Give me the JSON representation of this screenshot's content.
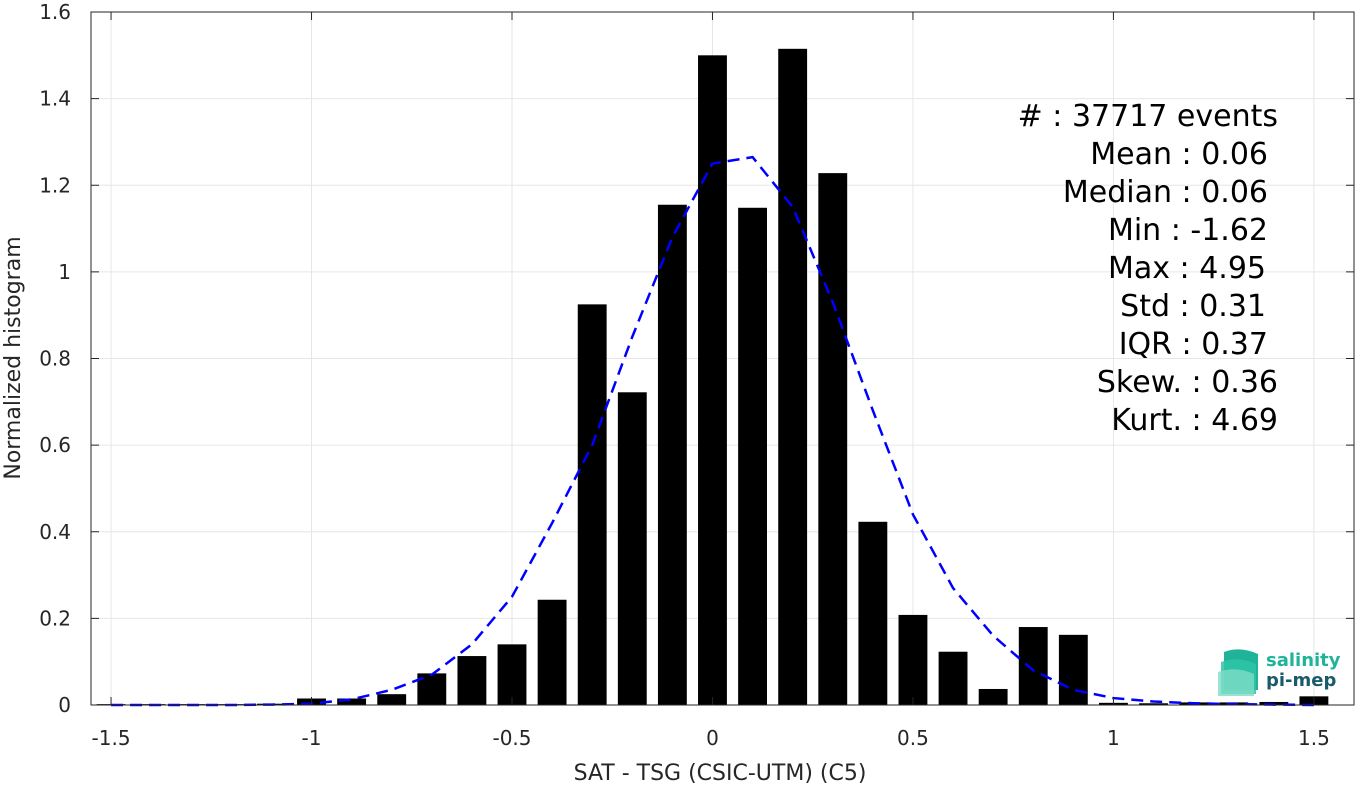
{
  "chart_data": {
    "type": "bar",
    "xlabel": "SAT - TSG (CSIC-UTM) (C5)",
    "ylabel": "Normalized histogram",
    "xlim": [
      -1.55,
      1.6
    ],
    "ylim": [
      0,
      1.6
    ],
    "xticks": [
      -1.5,
      -1,
      -0.5,
      0,
      0.5,
      1,
      1.5
    ],
    "xtick_labels": [
      "-1.5",
      "-1",
      "-0.5",
      "0",
      "0.5",
      "1",
      "1.5"
    ],
    "yticks": [
      0,
      0.2,
      0.4,
      0.6,
      0.8,
      1,
      1.2,
      1.4,
      1.6
    ],
    "ytick_labels": [
      "0",
      "0.2",
      "0.4",
      "0.6",
      "0.8",
      "1",
      "1.2",
      "1.4",
      "1.6"
    ],
    "grid": true,
    "bar_color": "#000000",
    "fit_color": "#0000ff",
    "bin_width": 0.1,
    "bars": {
      "x": [
        -1.5,
        -1.4,
        -1.3,
        -1.2,
        -1.1,
        -1.0,
        -0.9,
        -0.8,
        -0.7,
        -0.6,
        -0.5,
        -0.4,
        -0.3,
        -0.2,
        -0.1,
        0.0,
        0.1,
        0.2,
        0.3,
        0.4,
        0.5,
        0.6,
        0.7,
        0.8,
        0.9,
        1.0,
        1.1,
        1.2,
        1.3,
        1.4,
        1.5
      ],
      "values": [
        0.002,
        0.002,
        0.002,
        0.002,
        0.003,
        0.015,
        0.015,
        0.025,
        0.073,
        0.113,
        0.14,
        0.243,
        0.925,
        0.722,
        1.155,
        1.5,
        1.148,
        1.515,
        1.228,
        0.423,
        0.208,
        0.123,
        0.037,
        0.18,
        0.162,
        0.005,
        0.004,
        0.006,
        0.006,
        0.007,
        0.02
      ]
    },
    "fit_curve": {
      "name": "normal fit",
      "style": "dashed",
      "x": [
        -1.5,
        -1.4,
        -1.3,
        -1.2,
        -1.1,
        -1.0,
        -0.9,
        -0.8,
        -0.7,
        -0.6,
        -0.5,
        -0.4,
        -0.3,
        -0.2,
        -0.1,
        0.0,
        0.1,
        0.2,
        0.3,
        0.4,
        0.5,
        0.6,
        0.7,
        0.8,
        0.9,
        1.0,
        1.1,
        1.2,
        1.3,
        1.4,
        1.5
      ],
      "y": [
        0.0,
        0.0,
        0.0,
        0.0,
        0.001,
        0.003,
        0.013,
        0.035,
        0.07,
        0.14,
        0.25,
        0.42,
        0.6,
        0.85,
        1.08,
        1.25,
        1.265,
        1.15,
        0.93,
        0.68,
        0.44,
        0.27,
        0.16,
        0.08,
        0.035,
        0.016,
        0.008,
        0.004,
        0.002,
        0.001,
        0.0
      ]
    },
    "stats": [
      {
        "label": "#  : 37717 events"
      },
      {
        "label": "Mean : 0.06"
      },
      {
        "label": "Median : 0.06"
      },
      {
        "label": "Min : -1.62"
      },
      {
        "label": "Max : 4.95"
      },
      {
        "label": "Std : 0.31"
      },
      {
        "label": "IQR : 0.37"
      },
      {
        "label": "Skew. : 0.36"
      },
      {
        "label": "Kurt. : 4.69"
      }
    ]
  },
  "logo": {
    "line1": "salinity",
    "line2": "pi-mep",
    "color1": "#1fb39a",
    "color2": "#1a5b6b"
  }
}
